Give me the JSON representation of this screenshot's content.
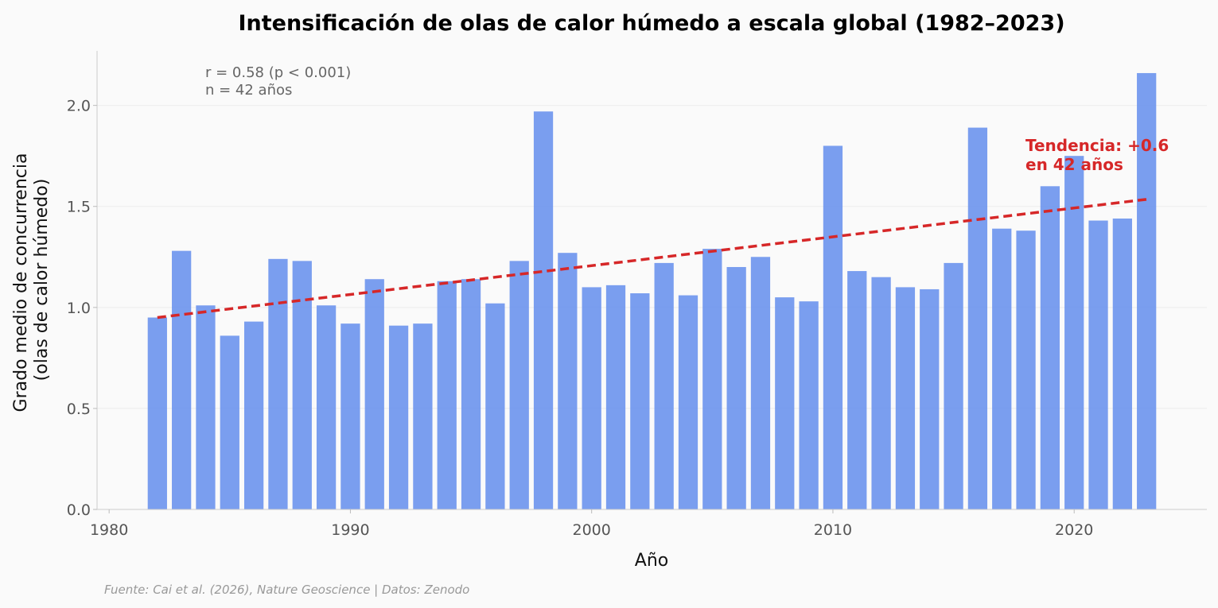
{
  "chart_data": {
    "type": "bar",
    "title": "Intensificación de olas de calor húmedo a escala global (1982–2023)",
    "xlabel": "Año",
    "ylabel_line1": "Grado medio de concurrencia",
    "ylabel_line2": "(olas de calor húmedo)",
    "xlim": [
      1979.5,
      2025.5
    ],
    "ylim": [
      0,
      2.27
    ],
    "x_ticks": [
      1980,
      1990,
      2000,
      2010,
      2020
    ],
    "y_ticks": [
      0.0,
      0.5,
      1.0,
      1.5,
      2.0
    ],
    "y_tick_labels": [
      "0.0",
      "0.5",
      "1.0",
      "1.5",
      "2.0"
    ],
    "grid": true,
    "bar_color": "#6b93ed",
    "x": [
      1982,
      1983,
      1984,
      1985,
      1986,
      1987,
      1988,
      1989,
      1990,
      1991,
      1992,
      1993,
      1994,
      1995,
      1996,
      1997,
      1998,
      1999,
      2000,
      2001,
      2002,
      2003,
      2004,
      2005,
      2006,
      2007,
      2008,
      2009,
      2010,
      2011,
      2012,
      2013,
      2014,
      2015,
      2016,
      2017,
      2018,
      2019,
      2020,
      2021,
      2022,
      2023
    ],
    "values": [
      0.95,
      1.28,
      1.01,
      0.86,
      0.93,
      1.24,
      1.23,
      1.01,
      0.92,
      1.14,
      0.91,
      0.92,
      1.13,
      1.14,
      1.02,
      1.23,
      1.97,
      1.27,
      1.1,
      1.11,
      1.07,
      1.22,
      1.06,
      1.29,
      1.2,
      1.25,
      1.05,
      1.03,
      1.8,
      1.18,
      1.15,
      1.1,
      1.09,
      1.22,
      1.89,
      1.39,
      1.38,
      1.6,
      1.75,
      1.43,
      1.44,
      2.16
    ],
    "trend": {
      "x_start": 1982,
      "y_start": 0.95,
      "x_end": 2023,
      "y_end": 1.535,
      "color": "#d62728",
      "label_line1": "Tendencia: +0.6",
      "label_line2": "en 42 años"
    },
    "stats_line1": "r = 0.58 (p < 0.001)",
    "stats_line2": "n = 42 años",
    "source": "Fuente: Cai et al. (2026), Nature Geoscience | Datos: Zenodo"
  }
}
